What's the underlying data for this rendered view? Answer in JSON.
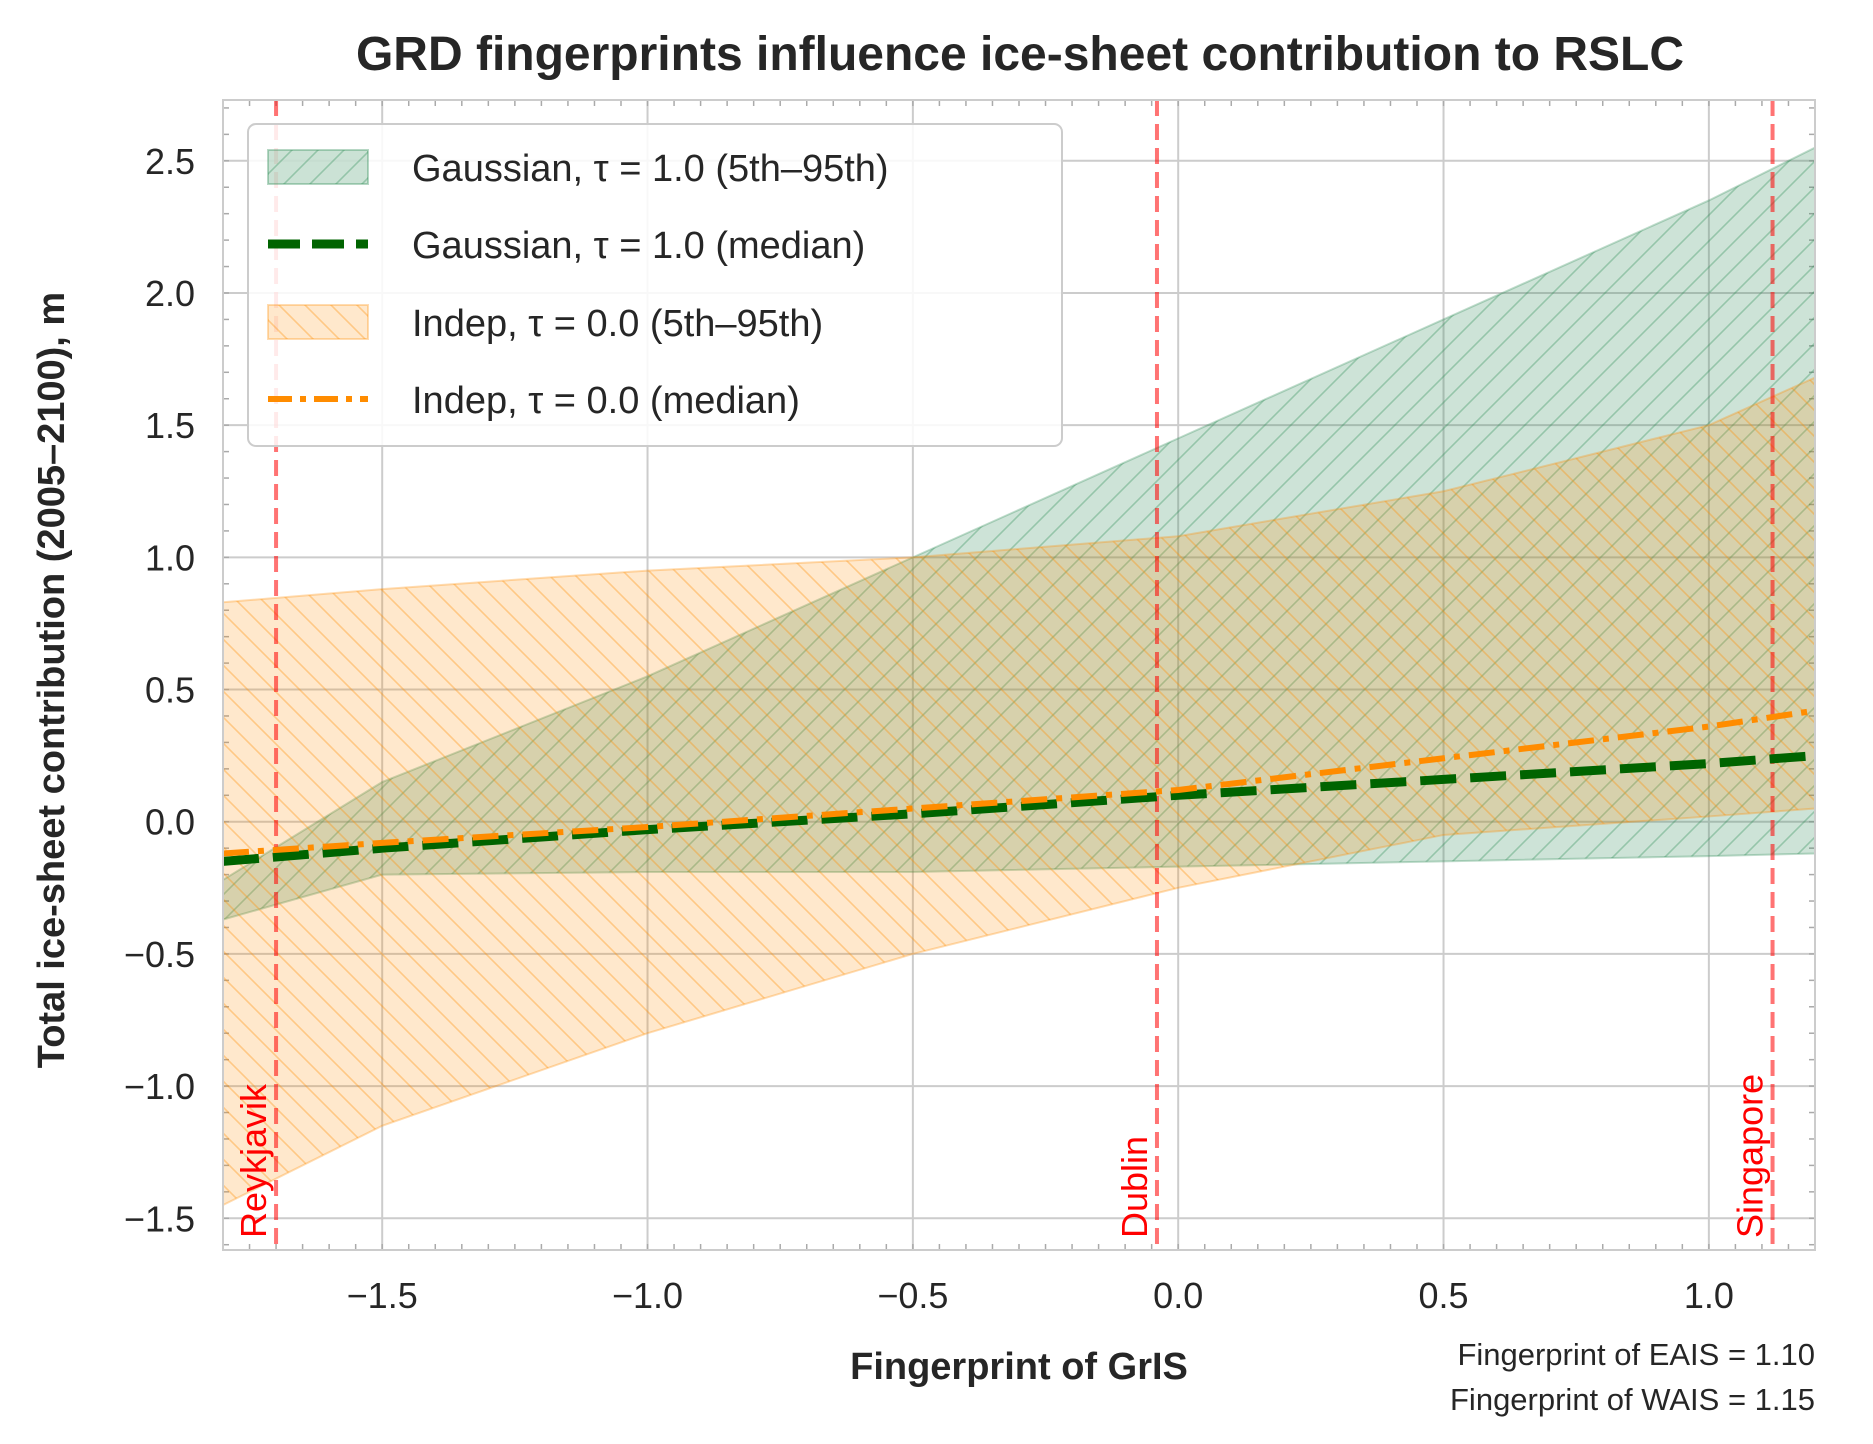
{
  "chart_data": {
    "type": "area",
    "title": "GRD fingerprints influence ice-sheet contribution to RSLC",
    "xlabel": "Fingerprint of GrIS",
    "ylabel": "Total ice-sheet contribution (2005–2100), m",
    "xlim": [
      -1.8,
      1.2
    ],
    "ylim": [
      -1.62,
      2.73
    ],
    "xticks": [
      -1.5,
      -1.0,
      -0.5,
      0.0,
      0.5,
      1.0
    ],
    "xtick_labels": [
      "−1.5",
      "−1.0",
      "−0.5",
      "0.0",
      "0.5",
      "1.0"
    ],
    "yticks": [
      -1.5,
      -1.0,
      -0.5,
      0.0,
      0.5,
      1.0,
      1.5,
      2.0,
      2.5
    ],
    "ytick_labels": [
      "−1.5",
      "−1.0",
      "−0.5",
      "0.0",
      "0.5",
      "1.0",
      "1.5",
      "2.0",
      "2.5"
    ],
    "grid": true,
    "legend_position": "upper-left",
    "x": [
      -1.8,
      -1.5,
      -1.0,
      -0.5,
      0.0,
      0.5,
      1.0,
      1.2
    ],
    "series": [
      {
        "name": "Gaussian, τ = 1.0 (5th–95th)",
        "kind": "band",
        "color": "#2e8b57",
        "hatch": "//",
        "lower": [
          -0.37,
          -0.2,
          -0.19,
          -0.19,
          -0.17,
          -0.15,
          -0.13,
          -0.12
        ],
        "upper": [
          -0.22,
          0.15,
          0.55,
          1.0,
          1.45,
          1.9,
          2.35,
          2.55
        ]
      },
      {
        "name": "Gaussian, τ = 1.0 (median)",
        "kind": "line",
        "color": "#006400",
        "dash": "dashed",
        "y": [
          -0.15,
          -0.1,
          -0.03,
          0.03,
          0.1,
          0.16,
          0.22,
          0.25
        ]
      },
      {
        "name": "Indep, τ = 0.0 (5th–95th)",
        "kind": "band",
        "color": "#ff8c00",
        "hatch": "\\\\",
        "lower": [
          -1.45,
          -1.15,
          -0.8,
          -0.5,
          -0.25,
          -0.05,
          0.02,
          0.05
        ],
        "upper": [
          0.83,
          0.88,
          0.95,
          1.0,
          1.08,
          1.25,
          1.5,
          1.68
        ]
      },
      {
        "name": "Indep, τ = 0.0 (median)",
        "kind": "line",
        "color": "#ff8c00",
        "dash": "dashdot",
        "y": [
          -0.12,
          -0.08,
          -0.02,
          0.05,
          0.12,
          0.24,
          0.36,
          0.42
        ]
      }
    ],
    "vlines": [
      {
        "x": -1.7,
        "label": "Reykjavik",
        "color": "#ff0000"
      },
      {
        "x": -0.04,
        "label": "Dublin",
        "color": "#ff0000"
      },
      {
        "x": 1.12,
        "label": "Singapore",
        "color": "#ff0000"
      }
    ],
    "annotations": [
      "Fingerprint of EAIS = 1.10",
      "Fingerprint of WAIS = 1.15"
    ]
  }
}
